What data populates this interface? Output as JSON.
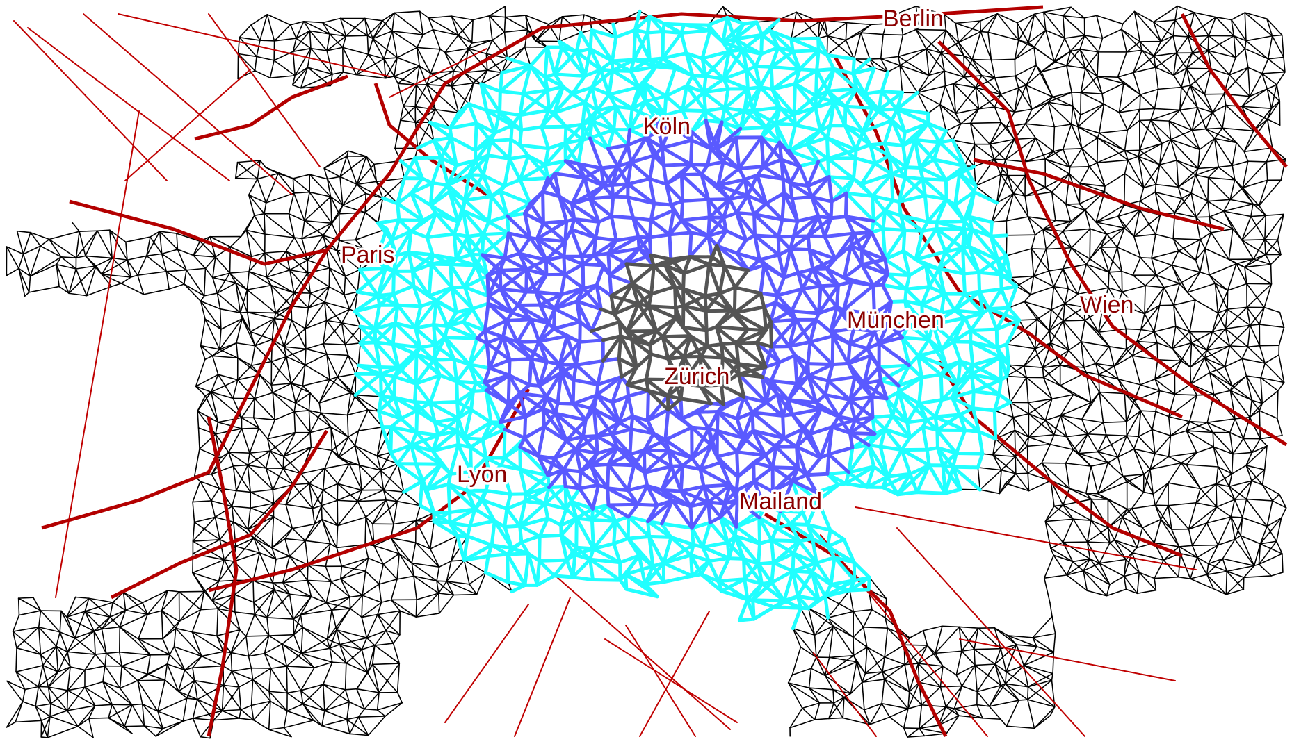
{
  "map": {
    "cities": [
      {
        "id": "berlin",
        "label": "Berlin"
      },
      {
        "id": "koeln",
        "label": "Köln"
      },
      {
        "id": "paris",
        "label": "Paris"
      },
      {
        "id": "wien",
        "label": "Wien"
      },
      {
        "id": "muenchen",
        "label": "München"
      },
      {
        "id": "zuerich",
        "label": "Zürich"
      },
      {
        "id": "lyon",
        "label": "Lyon"
      },
      {
        "id": "mailand",
        "label": "Mailand"
      }
    ],
    "colors": {
      "background": "#ffffff",
      "local_roads": "#000000",
      "highways": "#b30000",
      "ferry_links": "#c00000",
      "reach_outer": "#21ffff",
      "reach_middle": "#5a5aff",
      "reach_inner": "#555555",
      "label_text": "#8b0000"
    }
  }
}
